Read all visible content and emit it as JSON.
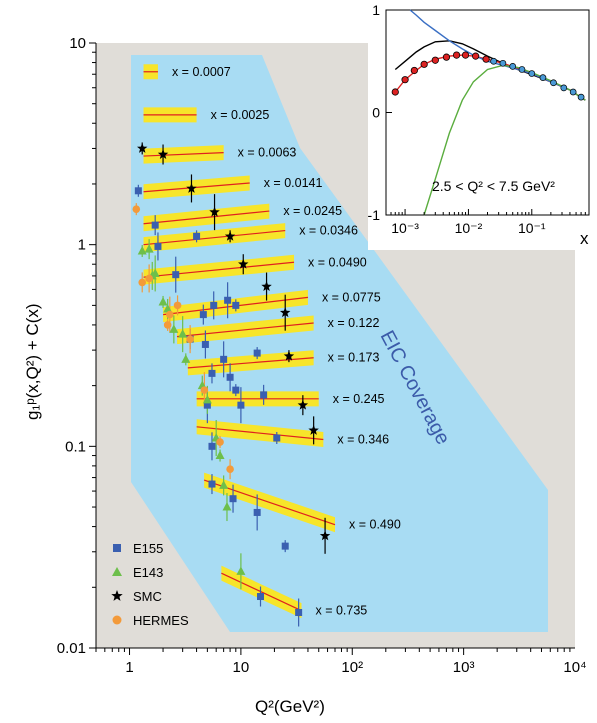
{
  "chart_data": [
    {
      "type": "scatter",
      "xlabel": "Q²(GeV²)",
      "ylabel": "g₁ᵖ(x,Q²) + C(x)",
      "x_scale": "log",
      "y_scale": "log",
      "xlim": [
        0.5,
        10000
      ],
      "ylim": [
        0.01,
        10
      ],
      "x_tick_labels": [
        "1",
        "10",
        "10²",
        "10³",
        "10⁴"
      ],
      "y_tick_labels": [
        "0.01",
        "0.1",
        "1",
        "10"
      ],
      "annotation": "EIC Coverage",
      "legend_position": "bottom-left",
      "legend": [
        "E155",
        "E143",
        "SMC",
        "HERMES"
      ],
      "series_colors": {
        "E155": "#3a5fb0",
        "E143": "#6dbf4b",
        "SMC": "#000000",
        "HERMES": "#f39a3a"
      },
      "x_bins": [
        {
          "label": "x = 0.0007",
          "q2": [
            1.0,
            1.8
          ],
          "value": 7.2,
          "slope": 0.0
        },
        {
          "label": "x = 0.0025",
          "q2": [
            1.0,
            4.0
          ],
          "value": 4.4,
          "slope": 0.0
        },
        {
          "label": "x = 0.0063",
          "q2": [
            1.0,
            7.0
          ],
          "value": 2.75,
          "slope": 0.02
        },
        {
          "label": "x = 0.0141",
          "q2": [
            1.0,
            12.0
          ],
          "value": 1.83,
          "slope": 0.04
        },
        {
          "label": "x = 0.0245",
          "q2": [
            1.0,
            18.0
          ],
          "value": 1.27,
          "slope": 0.05
        },
        {
          "label": "x = 0.0346",
          "q2": [
            1.0,
            25.0
          ],
          "value": 1.0,
          "slope": 0.05
        },
        {
          "label": "x = 0.0490",
          "q2": [
            1.0,
            30.0
          ],
          "value": 0.69,
          "slope": 0.05
        },
        {
          "label": "x = 0.0775",
          "q2": [
            1.5,
            40.0
          ],
          "value": 0.45,
          "slope": 0.06
        },
        {
          "label": "x = 0.122",
          "q2": [
            2.0,
            45.0
          ],
          "value": 0.35,
          "slope": 0.05
        },
        {
          "label": "x = 0.173",
          "q2": [
            2.5,
            45.0
          ],
          "value": 0.245,
          "slope": 0.04
        },
        {
          "label": "x = 0.245",
          "q2": [
            3.0,
            50.0
          ],
          "value": 0.172,
          "slope": 0.0
        },
        {
          "label": "x = 0.346",
          "q2": [
            3.0,
            55.0
          ],
          "value": 0.125,
          "slope": -0.05
        },
        {
          "label": "x = 0.490",
          "q2": [
            3.5,
            70.0
          ],
          "value": 0.068,
          "slope": -0.17
        },
        {
          "label": "x = 0.735",
          "q2": [
            5.0,
            35.0
          ],
          "value": 0.0235,
          "slope": -0.22
        }
      ],
      "points": {
        "E155": [
          [
            1.2,
            1.85
          ],
          [
            1.7,
            1.25
          ],
          [
            1.8,
            0.98
          ],
          [
            2.6,
            0.71
          ],
          [
            4.0,
            1.1
          ],
          [
            4.6,
            0.45
          ],
          [
            5.7,
            0.5
          ],
          [
            7.6,
            0.53
          ],
          [
            9.0,
            0.5
          ],
          [
            3.5,
            0.34
          ],
          [
            4.8,
            0.32
          ],
          [
            7.0,
            0.27
          ],
          [
            14.0,
            0.29
          ],
          [
            5.5,
            0.23
          ],
          [
            8.0,
            0.22
          ],
          [
            5.0,
            0.16
          ],
          [
            9.0,
            0.19
          ],
          [
            16.0,
            0.18
          ],
          [
            5.5,
            0.1
          ],
          [
            10.0,
            0.16
          ],
          [
            21.0,
            0.11
          ],
          [
            5.5,
            0.065
          ],
          [
            8.5,
            0.055
          ],
          [
            14.0,
            0.047
          ],
          [
            25.0,
            0.032
          ],
          [
            15.0,
            0.018
          ],
          [
            33.0,
            0.015
          ]
        ],
        "E143": [
          [
            1.3,
            0.93
          ],
          [
            1.5,
            0.95
          ],
          [
            1.6,
            0.7
          ],
          [
            1.7,
            0.72
          ],
          [
            2.0,
            0.52
          ],
          [
            2.2,
            0.48
          ],
          [
            2.5,
            0.38
          ],
          [
            3.0,
            0.36
          ],
          [
            3.2,
            0.27
          ],
          [
            4.5,
            0.2
          ],
          [
            5.0,
            0.17
          ],
          [
            6.0,
            0.11
          ],
          [
            6.5,
            0.09
          ],
          [
            7.0,
            0.064
          ],
          [
            7.5,
            0.05
          ],
          [
            10.0,
            0.024
          ]
        ],
        "SMC": [
          [
            1.3,
            3.0
          ],
          [
            2.0,
            2.8
          ],
          [
            3.6,
            1.9
          ],
          [
            5.8,
            1.45
          ],
          [
            8.0,
            1.1
          ],
          [
            10.5,
            0.8
          ],
          [
            17.0,
            0.62
          ],
          [
            25.0,
            0.46
          ],
          [
            27.0,
            0.28
          ],
          [
            36.0,
            0.16
          ],
          [
            45.0,
            0.12
          ],
          [
            57.0,
            0.036
          ]
        ],
        "HERMES": [
          [
            1.15,
            1.5
          ],
          [
            1.3,
            0.65
          ],
          [
            1.5,
            0.68
          ],
          [
            2.3,
            0.45
          ],
          [
            2.2,
            0.4
          ],
          [
            2.7,
            0.5
          ],
          [
            3.5,
            0.34
          ],
          [
            4.7,
            0.19
          ],
          [
            6.5,
            0.105
          ],
          [
            8.0,
            0.077
          ]
        ]
      }
    },
    {
      "type": "line",
      "inset": true,
      "annotation": "2.5 < Q² < 7.5 GeV²",
      "xlabel": "x",
      "x_scale": "log",
      "xlim": [
        0.0005,
        0.8
      ],
      "ylim": [
        -1,
        1
      ],
      "x_tick_labels": [
        "10⁻³",
        "10⁻²",
        "10⁻¹"
      ],
      "y_tick_labels": [
        "-1",
        "0",
        "1"
      ],
      "series": [
        {
          "name": "",
          "color": "#000000",
          "x": [
            0.0007,
            0.001,
            0.0015,
            0.002,
            0.003,
            0.005,
            0.008,
            0.012,
            0.02,
            0.035,
            0.06,
            0.1,
            0.2,
            0.4,
            0.7
          ],
          "y": [
            0.42,
            0.5,
            0.59,
            0.64,
            0.69,
            0.7,
            0.67,
            0.62,
            0.55,
            0.48,
            0.42,
            0.37,
            0.3,
            0.22,
            0.12
          ]
        },
        {
          "name": "",
          "color": "#dd2222",
          "x": [
            0.0007,
            0.001,
            0.0015,
            0.002,
            0.003,
            0.005,
            0.008,
            0.012,
            0.02,
            0.035,
            0.06,
            0.1,
            0.2,
            0.4,
            0.7
          ],
          "y": [
            0.2,
            0.32,
            0.41,
            0.47,
            0.52,
            0.55,
            0.56,
            0.55,
            0.52,
            0.48,
            0.43,
            0.38,
            0.3,
            0.22,
            0.12
          ]
        },
        {
          "name": "",
          "color": "#3a6fc4",
          "x": [
            0.0012,
            0.0015,
            0.002,
            0.003,
            0.005,
            0.008,
            0.012,
            0.02,
            0.035,
            0.06,
            0.1,
            0.2,
            0.4,
            0.7
          ],
          "y": [
            1.0,
            0.95,
            0.88,
            0.8,
            0.7,
            0.62,
            0.56,
            0.5,
            0.46,
            0.42,
            0.38,
            0.3,
            0.22,
            0.12
          ]
        },
        {
          "name": "",
          "color": "#5aad3e",
          "x": [
            0.002,
            0.003,
            0.005,
            0.008,
            0.012,
            0.02,
            0.035,
            0.06,
            0.1,
            0.2,
            0.4,
            0.7
          ],
          "y": [
            -1.0,
            -0.65,
            -0.2,
            0.12,
            0.3,
            0.42,
            0.46,
            0.44,
            0.39,
            0.31,
            0.22,
            0.12
          ]
        }
      ],
      "points_red": [
        [
          0.0007,
          0.2
        ],
        [
          0.001,
          0.32
        ],
        [
          0.0014,
          0.41
        ],
        [
          0.002,
          0.47
        ],
        [
          0.003,
          0.51
        ],
        [
          0.0045,
          0.54
        ],
        [
          0.0065,
          0.56
        ],
        [
          0.009,
          0.56
        ],
        [
          0.013,
          0.55
        ],
        [
          0.019,
          0.52
        ]
      ],
      "points_blue": [
        [
          0.025,
          0.5
        ],
        [
          0.035,
          0.48
        ],
        [
          0.05,
          0.45
        ],
        [
          0.07,
          0.42
        ],
        [
          0.1,
          0.38
        ],
        [
          0.15,
          0.34
        ],
        [
          0.22,
          0.29
        ],
        [
          0.32,
          0.24
        ],
        [
          0.45,
          0.2
        ],
        [
          0.6,
          0.15
        ]
      ]
    }
  ]
}
